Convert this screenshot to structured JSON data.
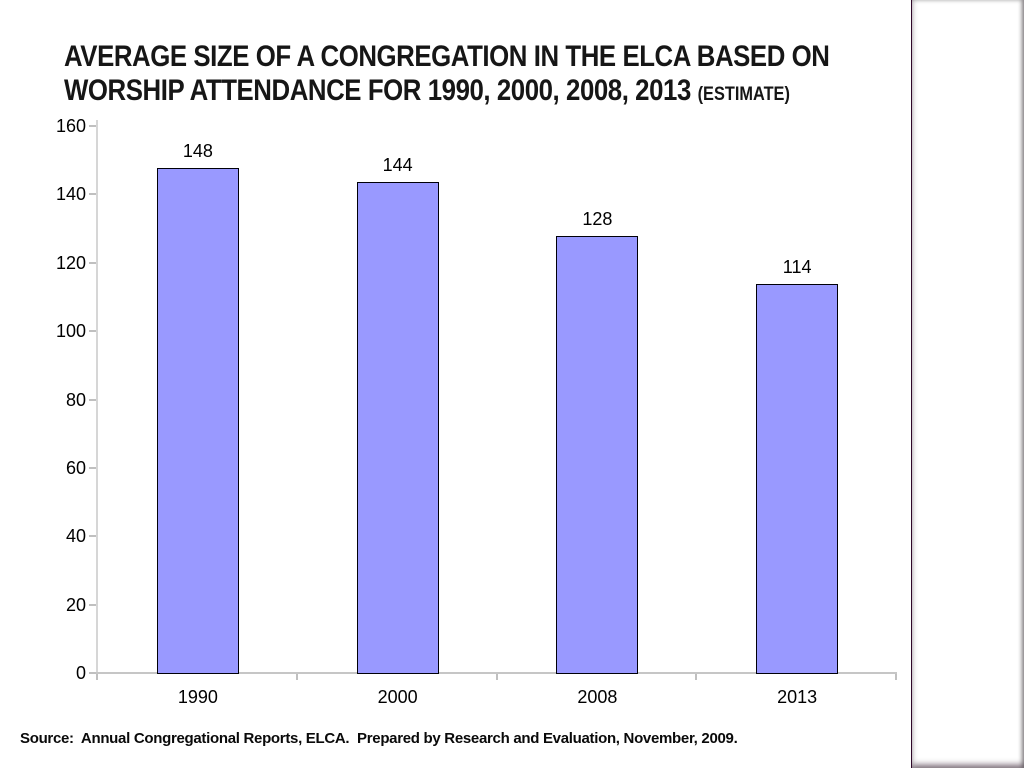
{
  "slide": {
    "title": {
      "line1": "AVERAGE SIZE OF A CONGREGATION IN THE ELCA BASED ON",
      "line2": "WORSHIP ATTENDANCE FOR 1990, 2000, 2008, 2013",
      "suffix": "(ESTIMATE)",
      "color": "#161616"
    },
    "source_note": "Source:  Annual Congregational Reports, ELCA.  Prepared by Research and Evaluation, November, 2009.",
    "side_strip": {
      "gradient_top": "#3d0a35",
      "gradient_bottom": "#ae4f9e",
      "pattern": "diamond"
    }
  },
  "chart_data": {
    "type": "bar",
    "title": "AVERAGE SIZE OF A CONGREGATION IN THE ELCA BASED ON WORSHIP ATTENDANCE FOR 1990, 2000, 2008, 2013 (ESTIMATE)",
    "categories": [
      "1990",
      "2000",
      "2008",
      "2013"
    ],
    "values": [
      148,
      144,
      128,
      114
    ],
    "data_labels": [
      "148",
      "144",
      "128",
      "114"
    ],
    "xlabel": "",
    "ylabel": "",
    "ylim": [
      0,
      160
    ],
    "yticks": [
      0,
      20,
      40,
      60,
      80,
      100,
      120,
      140,
      160
    ],
    "grid": false,
    "legend": false,
    "bar_fill": "#9999FF",
    "bar_border": "#000008",
    "axis_color": "#c6c6c6"
  }
}
